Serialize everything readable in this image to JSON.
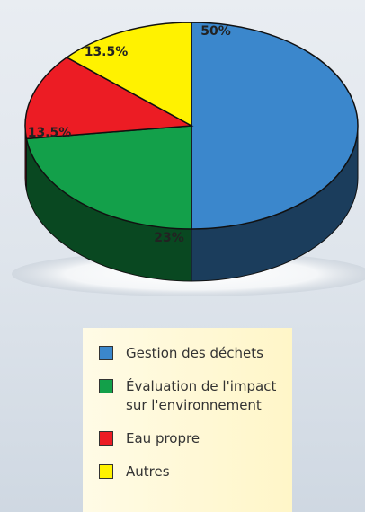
{
  "chart_data": {
    "type": "pie",
    "categories": [
      "Gestion des déchets",
      "Évaluation de l'impact sur l'environnement",
      "Eau propre",
      "Autres"
    ],
    "values": [
      50,
      23,
      13.5,
      13.5
    ],
    "value_labels": [
      "50%",
      "23%",
      "13.5%",
      "13.5%"
    ],
    "colors": [
      "#3b87cc",
      "#13a04a",
      "#ec1c24",
      "#fff200"
    ]
  }
}
